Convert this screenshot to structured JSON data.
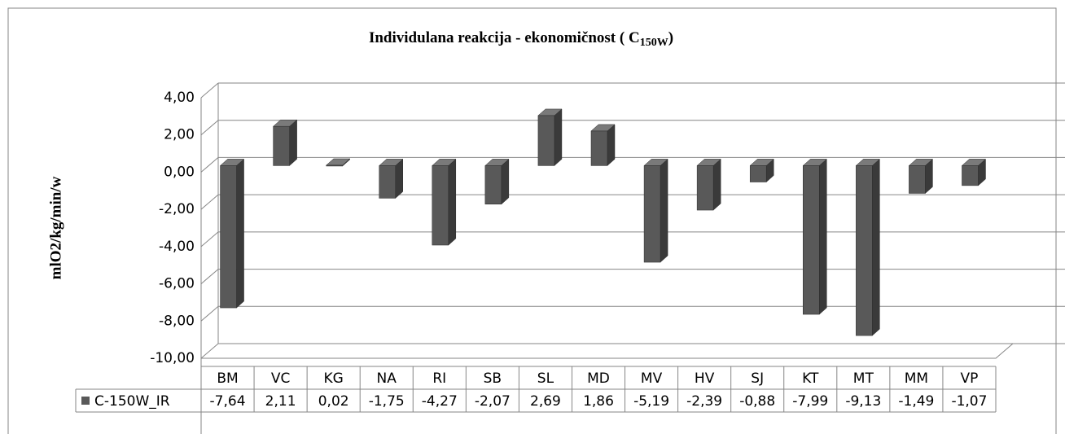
{
  "chart_data": {
    "type": "bar3d",
    "title": "Individulana reakcija - ekonomičnost ( C",
    "title_subscript": "150W",
    "title_end": ")",
    "y_label": "mlO2/kg/min/w",
    "categories": [
      "BM",
      "VC",
      "KG",
      "NA",
      "RI",
      "SB",
      "SL",
      "MD",
      "MV",
      "HV",
      "SJ",
      "KT",
      "MT",
      "MM",
      "VP"
    ],
    "series": [
      {
        "name": "C-150W_IR",
        "color": "#595959",
        "values": [
          -7.64,
          2.11,
          0.02,
          -1.75,
          -4.27,
          -2.07,
          2.69,
          1.86,
          -5.19,
          -2.39,
          -0.88,
          -7.99,
          -9.13,
          -1.49,
          -1.07
        ],
        "value_labels": [
          "-7,64",
          "2,11",
          "0,02",
          "-1,75",
          "-4,27",
          "-2,07",
          "2,69",
          "1,86",
          "-5,19",
          "-2,39",
          "-0,88",
          "-7,99",
          "-9,13",
          "-1,49",
          "-1,07"
        ]
      }
    ],
    "ylim": [
      -10,
      4
    ],
    "yticks": [
      {
        "value": -10,
        "label": "-10,00"
      },
      {
        "value": -8,
        "label": "-8,00"
      },
      {
        "value": -6,
        "label": "-6,00"
      },
      {
        "value": -4,
        "label": "-4,00"
      },
      {
        "value": -2,
        "label": "-2,00"
      },
      {
        "value": 0,
        "label": "0,00"
      },
      {
        "value": 2,
        "label": "2,00"
      },
      {
        "value": 4,
        "label": "4,00"
      }
    ],
    "grid": true,
    "data_table": true
  }
}
